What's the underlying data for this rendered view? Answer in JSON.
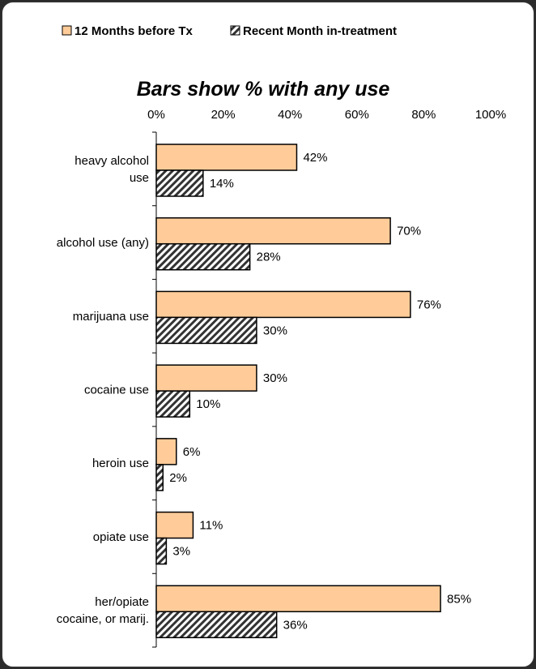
{
  "chart_data": {
    "type": "bar",
    "orientation": "horizontal",
    "title": "Bars show % with any use",
    "categories": [
      [
        "heavy alcohol",
        "use"
      ],
      [
        "alcohol use (any)"
      ],
      [
        "marijuana use"
      ],
      [
        "cocaine use"
      ],
      [
        "heroin use"
      ],
      [
        "opiate use"
      ],
      [
        "her/opiate",
        "cocaine, or marij."
      ]
    ],
    "series": [
      {
        "name": "12 Months before Tx",
        "values": [
          42,
          70,
          76,
          30,
          6,
          11,
          85
        ],
        "labels": [
          "42%",
          "70%",
          "76%",
          "30%",
          "6%",
          "11%",
          "85%"
        ],
        "color": "#ffcc99",
        "pattern": "solid"
      },
      {
        "name": "Recent Month in-treatment",
        "values": [
          14,
          28,
          30,
          10,
          2,
          3,
          36
        ],
        "labels": [
          "14%",
          "28%",
          "30%",
          "10%",
          "2%",
          "3%",
          "36%"
        ],
        "color": "#333333",
        "pattern": "diagonal-hatch"
      }
    ],
    "xlim": [
      0,
      100
    ],
    "x_ticks": [
      "0%",
      "20%",
      "40%",
      "60%",
      "80%",
      "100%"
    ],
    "x_tick_values": [
      0,
      20,
      40,
      60,
      80,
      100
    ],
    "x_axis_position": "top",
    "legend_position": "top",
    "grid": false
  }
}
